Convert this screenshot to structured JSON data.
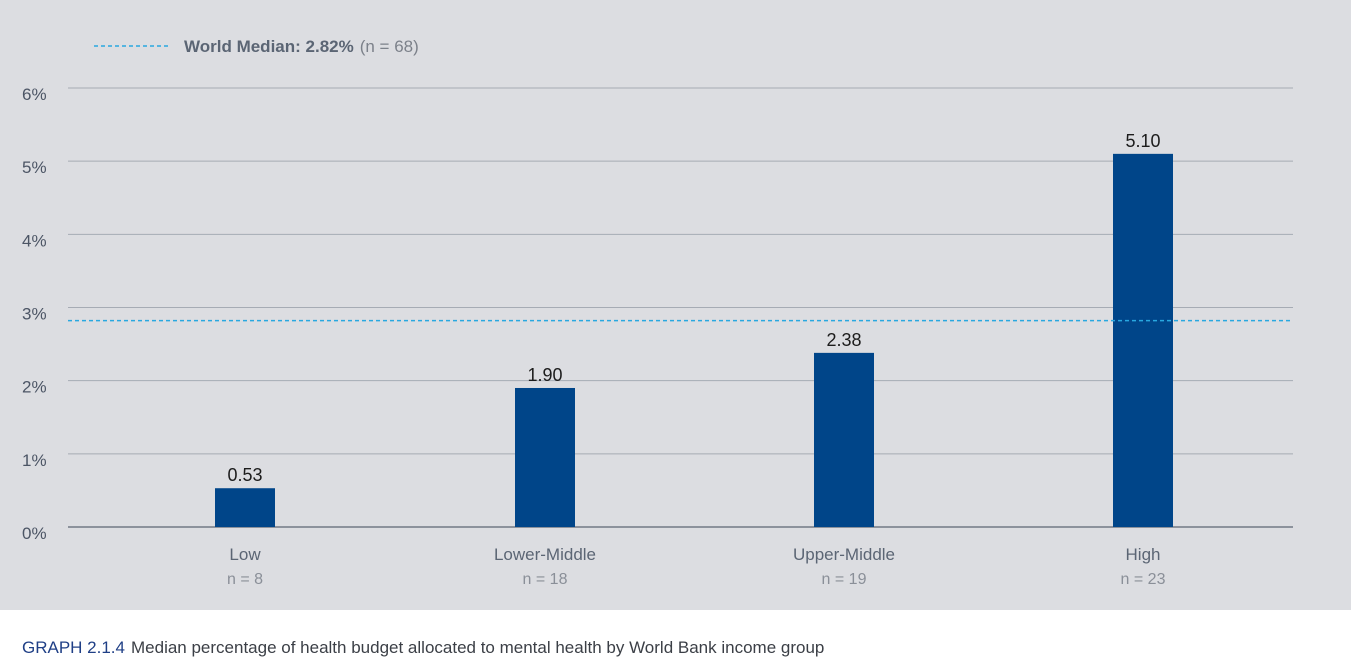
{
  "caption": {
    "id": "GRAPH 2.1.4",
    "text": "Median percentage of health budget allocated to mental health by World Bank income group"
  },
  "colors": {
    "bar": "#004589",
    "median_line": "#29a8e0",
    "grid": "#a6abb4",
    "baseline": "#8c929c",
    "background": "#dcdde1"
  },
  "chart_data": {
    "type": "bar",
    "title": "",
    "xlabel": "",
    "ylabel": "",
    "categories": [
      "Low",
      "Lower-Middle",
      "Upper-Middle",
      "High"
    ],
    "n_labels": [
      "n = 8",
      "n = 18",
      "n = 19",
      "n = 23"
    ],
    "values": [
      0.53,
      1.9,
      2.38,
      5.1
    ],
    "value_labels": [
      "0.53",
      "1.90",
      "2.38",
      "5.10"
    ],
    "ylim": [
      0,
      6
    ],
    "y_ticks": [
      0,
      1,
      2,
      3,
      4,
      5,
      6
    ],
    "y_tick_labels": [
      "0%",
      "1%",
      "2%",
      "3%",
      "4%",
      "5%",
      "6%"
    ],
    "grid": true,
    "reference_line": {
      "value": 2.82,
      "label_bold": "World Median: 2.82%",
      "label_rest": "(n = 68)"
    },
    "legend_position": "top-left"
  }
}
